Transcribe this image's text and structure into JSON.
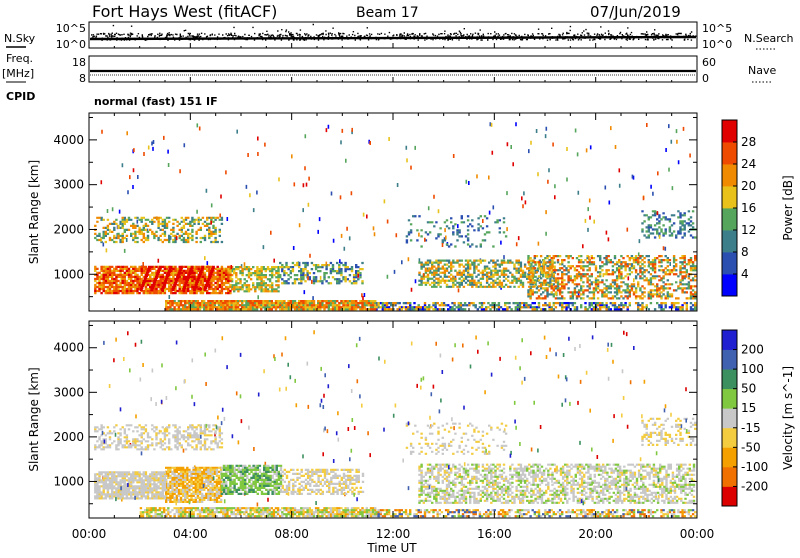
{
  "header": {
    "station": "Fort Hays West (fitACF)",
    "beam": "Beam 17",
    "date": "07/Jun/2019"
  },
  "sidebar": {
    "nsky_label": "N.Sky",
    "freq_label": "Freq.",
    "freq_unit": "[MHz]",
    "cpid_label": "CPID",
    "nsearch_label": "N.Search",
    "nave_label": "Nave"
  },
  "mode_text": "normal (fast) 151 IF",
  "colors": {
    "power": [
      "#0000ff",
      "#2b4fb0",
      "#3c7e8a",
      "#56a55c",
      "#e8c21a",
      "#f08a00",
      "#ee4a00",
      "#e00000"
    ],
    "velocity": [
      "#dd0000",
      "#f07000",
      "#f4a000",
      "#f4cc40",
      "#c8c8c8",
      "#80c840",
      "#3c9060",
      "#4060b0",
      "#2020d0"
    ]
  },
  "chart_data": [
    {
      "type": "line",
      "name": "noise-sky-search",
      "ytick_labels": [
        "10^5",
        "10^0"
      ],
      "y2tick_labels": [
        "10^5",
        "10^0"
      ]
    },
    {
      "type": "line",
      "name": "frequency-nave",
      "yticks": [
        18,
        8
      ],
      "y2ticks": [
        60,
        0
      ]
    },
    {
      "type": "heatmap",
      "name": "power",
      "ylabel": "Slant Range [km]",
      "yticks": [
        1000,
        2000,
        3000,
        4000
      ],
      "ylim": [
        180,
        4600
      ],
      "colorbar_label": "Power [dB]",
      "colorbar_ticks": [
        4,
        8,
        12,
        16,
        20,
        24,
        28
      ],
      "colorbar_range": [
        0,
        32
      ]
    },
    {
      "type": "heatmap",
      "name": "velocity",
      "ylabel": "Slant Range [km]",
      "yticks": [
        1000,
        2000,
        3000,
        4000
      ],
      "ylim": [
        180,
        4600
      ],
      "colorbar_label": "Velocity [m s^-1]",
      "colorbar_ticks": [
        "-200",
        "-100",
        "-50",
        "-15",
        "15",
        "50",
        "100",
        "200"
      ],
      "xlabel": "Time UT",
      "xticks": [
        "00:00",
        "04:00",
        "08:00",
        "12:00",
        "16:00",
        "20:00",
        "00:00"
      ],
      "xlim_hours": [
        0,
        24
      ]
    }
  ]
}
